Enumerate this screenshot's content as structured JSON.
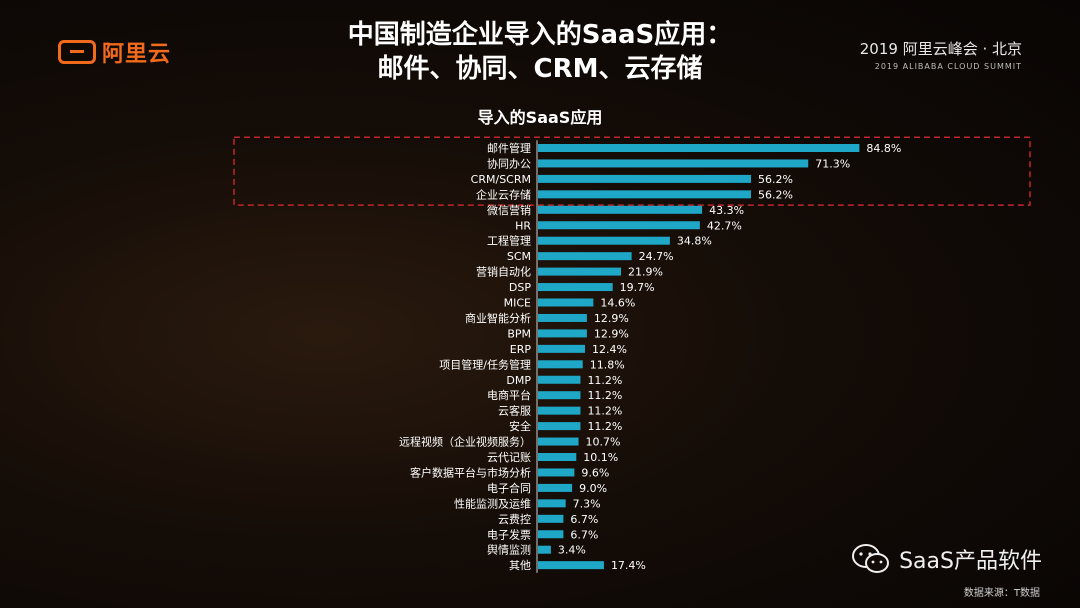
{
  "logo": {
    "text": "阿里云",
    "icon": "alibaba-cloud-logo-icon",
    "color": "#f26a1b"
  },
  "title": {
    "line1": "中国制造企业导入的SaaS应用：",
    "line2": "邮件、协同、CRM、云存储"
  },
  "summit": {
    "line1": "2019 阿里云峰会 · 北京",
    "line2": "2019 ALIBABA CLOUD SUMMIT"
  },
  "chart_data": {
    "type": "bar",
    "orientation": "horizontal",
    "title": "导入的SaaS应用",
    "bar_color": "#1fa7c8",
    "highlight": {
      "categories": [
        "邮件管理",
        "协同办公",
        "CRM/SCRM",
        "企业云存储"
      ],
      "style": "red-dashed-box",
      "color": "#c0272d"
    },
    "categories": [
      "邮件管理",
      "协同办公",
      "CRM/SCRM",
      "企业云存储",
      "微信营销",
      "HR",
      "工程管理",
      "SCM",
      "营销自动化",
      "DSP",
      "MICE",
      "商业智能分析",
      "BPM",
      "ERP",
      "项目管理/任务管理",
      "DMP",
      "电商平台",
      "云客服",
      "安全",
      "远程视频（企业视频服务）",
      "云代记账",
      "客户数据平台与市场分析",
      "电子合同",
      "性能监测及运维",
      "云费控",
      "电子发票",
      "舆情监测",
      "其他"
    ],
    "values": [
      84.8,
      71.3,
      56.2,
      56.2,
      43.3,
      42.7,
      34.8,
      24.7,
      21.9,
      19.7,
      14.6,
      12.9,
      12.9,
      12.4,
      11.8,
      11.2,
      11.2,
      11.2,
      11.2,
      10.7,
      10.1,
      9.6,
      9.0,
      7.3,
      6.7,
      6.7,
      3.4,
      17.4
    ],
    "labels": [
      "84.8%",
      "71.3%",
      "56.2%",
      "56.2%",
      "43.3%",
      "42.7%",
      "34.8%",
      "24.7%",
      "21.9%",
      "19.7%",
      "14.6%",
      "12.9%",
      "12.9%",
      "12.4%",
      "11.8%",
      "11.2%",
      "11.2%",
      "11.2%",
      "11.2%",
      "10.7%",
      "10.1%",
      "9.6%",
      "9.0%",
      "7.3%",
      "6.7%",
      "6.7%",
      "3.4%",
      "17.4%"
    ],
    "xlim": [
      0,
      100
    ]
  },
  "watermark": {
    "text": "SaaS产品软件",
    "icon": "wechat-icon"
  },
  "source": "数据来源：T数据"
}
